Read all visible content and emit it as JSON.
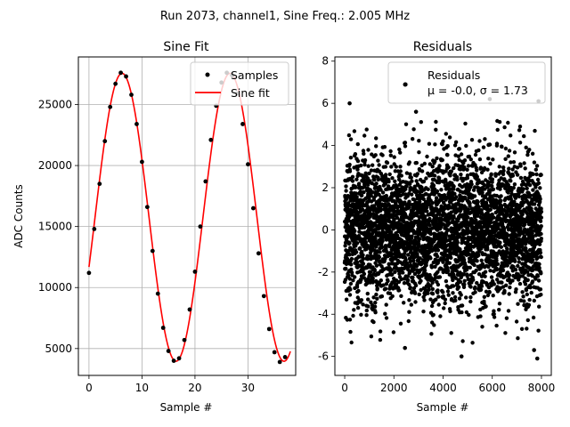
{
  "figure": {
    "suptitle": "Run 2073, channel1, Sine Freq.: 2.005 MHz"
  },
  "chart_data": [
    {
      "type": "line",
      "title": "Sine Fit",
      "xlabel": "Sample #",
      "ylabel": "ADC Counts",
      "xlim": [
        -2,
        39
      ],
      "ylim": [
        2800,
        28900
      ],
      "xticks": [
        0,
        10,
        20,
        30
      ],
      "yticks": [
        5000,
        10000,
        15000,
        20000,
        25000
      ],
      "grid": true,
      "legend_position": "top-right",
      "series": [
        {
          "name": "Samples",
          "style": "markers",
          "color": "#000000",
          "x": [
            0,
            1,
            2,
            3,
            4,
            5,
            6,
            7,
            8,
            9,
            10,
            11,
            12,
            13,
            14,
            15,
            16,
            17,
            18,
            19,
            20,
            21,
            22,
            23,
            24,
            25,
            26,
            27,
            28,
            29,
            30,
            31,
            32,
            33,
            34,
            35,
            36,
            37
          ],
          "y": [
            11200,
            14800,
            18500,
            22000,
            24800,
            26700,
            27600,
            27300,
            25800,
            23400,
            20300,
            16600,
            13000,
            9500,
            6700,
            4800,
            4000,
            4200,
            5700,
            8200,
            11300,
            15000,
            18700,
            22100,
            24900,
            26800,
            27600,
            27400,
            25900,
            23400,
            20100,
            16500,
            12800,
            9300,
            6600,
            4700,
            3900,
            4300
          ]
        },
        {
          "name": "Sine fit",
          "style": "line",
          "color": "#ff0000",
          "fit": {
            "offset": 15760,
            "amplitude": 11800,
            "period": 20.37,
            "x_at_zero_crossing": 1.143,
            "x_range": [
              0,
              38
            ]
          }
        }
      ]
    },
    {
      "type": "scatter",
      "title": "Residuals",
      "xlabel": "Sample #",
      "ylabel": "",
      "xlim": [
        -400,
        8400
      ],
      "ylim": [
        -6.9,
        8.2
      ],
      "xticks": [
        0,
        2000,
        4000,
        6000,
        8000
      ],
      "yticks": [
        -6,
        -4,
        -2,
        0,
        2,
        4,
        6,
        8
      ],
      "grid": false,
      "legend_position": "top-right",
      "series": [
        {
          "name": "Residuals",
          "color": "#000000",
          "stats_label": "μ = -0.0, σ = 1.73",
          "n_points": 8000,
          "mean": 0.0,
          "sigma": 1.73,
          "x_range": [
            0,
            7999
          ],
          "outliers": [
            [
              200,
              6.0
            ],
            [
              2500,
              6.9
            ],
            [
              2900,
              5.6
            ],
            [
              5900,
              6.2
            ],
            [
              7880,
              6.1
            ],
            [
              4750,
              -6.0
            ],
            [
              7830,
              -6.1
            ],
            [
              7700,
              -5.7
            ],
            [
              2450,
              -5.6
            ]
          ]
        }
      ]
    }
  ]
}
